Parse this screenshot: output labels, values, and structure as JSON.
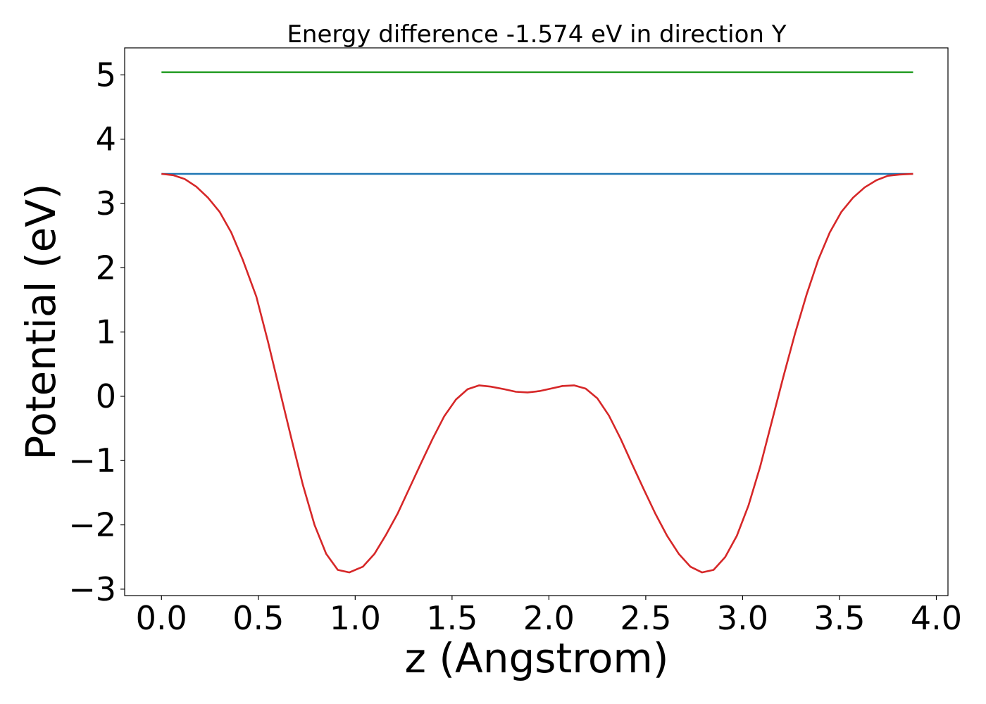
{
  "chart_data": {
    "type": "line",
    "title": "Energy difference -1.574 eV in direction Y",
    "xlabel": "z (Angstrom)",
    "ylabel": "Potential (eV)",
    "xlim": [
      -0.19,
      4.06
    ],
    "ylim": [
      -3.1,
      5.42
    ],
    "xticks": [
      0.0,
      0.5,
      1.0,
      1.5,
      2.0,
      2.5,
      3.0,
      3.5,
      4.0
    ],
    "xtick_labels": [
      "0.0",
      "0.5",
      "1.0",
      "1.5",
      "2.0",
      "2.5",
      "3.0",
      "3.5",
      "4.0"
    ],
    "yticks": [
      -3,
      -2,
      -1,
      0,
      1,
      2,
      3,
      4,
      5
    ],
    "ytick_labels": [
      "−3",
      "−2",
      "−1",
      "0",
      "1",
      "2",
      "3",
      "4",
      "5"
    ],
    "grid": false,
    "series": [
      {
        "color": "#2ca02c",
        "x": [
          0.0,
          3.88
        ],
        "y": [
          5.04,
          5.04
        ]
      },
      {
        "color": "#1f77b4",
        "x": [
          0.0,
          3.88
        ],
        "y": [
          3.46,
          3.46
        ]
      },
      {
        "color": "#d62728",
        "x": [
          0.0,
          0.06,
          0.12,
          0.18,
          0.24,
          0.3,
          0.36,
          0.42,
          0.49,
          0.55,
          0.61,
          0.67,
          0.73,
          0.79,
          0.85,
          0.91,
          0.97,
          1.04,
          1.1,
          1.16,
          1.22,
          1.28,
          1.34,
          1.4,
          1.46,
          1.52,
          1.58,
          1.64,
          1.7,
          1.77,
          1.83,
          1.89,
          1.95,
          2.01,
          2.07,
          2.13,
          2.19,
          2.25,
          2.31,
          2.37,
          2.43,
          2.49,
          2.55,
          2.61,
          2.67,
          2.73,
          2.79,
          2.85,
          2.91,
          2.97,
          3.03,
          3.09,
          3.15,
          3.21,
          3.27,
          3.33,
          3.39,
          3.45,
          3.51,
          3.57,
          3.63,
          3.69,
          3.75,
          3.81,
          3.88
        ],
        "y": [
          3.46,
          3.44,
          3.38,
          3.26,
          3.09,
          2.87,
          2.55,
          2.12,
          1.55,
          0.85,
          0.1,
          -0.65,
          -1.38,
          -2.0,
          -2.45,
          -2.7,
          -2.74,
          -2.65,
          -2.45,
          -2.15,
          -1.82,
          -1.43,
          -1.04,
          -0.66,
          -0.31,
          -0.05,
          0.11,
          0.17,
          0.15,
          0.11,
          0.07,
          0.06,
          0.08,
          0.12,
          0.16,
          0.17,
          0.12,
          -0.03,
          -0.3,
          -0.66,
          -1.06,
          -1.45,
          -1.83,
          -2.17,
          -2.45,
          -2.65,
          -2.74,
          -2.7,
          -2.5,
          -2.17,
          -1.7,
          -1.1,
          -0.4,
          0.3,
          0.97,
          1.58,
          2.12,
          2.55,
          2.87,
          3.09,
          3.25,
          3.36,
          3.43,
          3.45,
          3.46
        ]
      }
    ]
  }
}
